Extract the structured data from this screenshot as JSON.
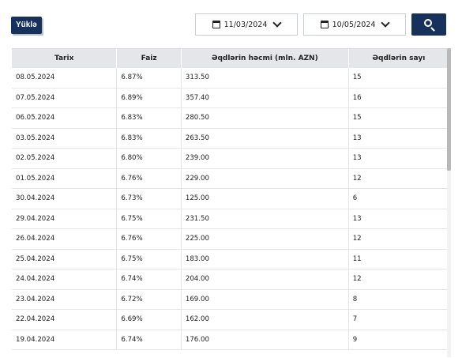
{
  "toolbar": {
    "load_label": "Yüklə",
    "date_from": "11/03/2024",
    "date_to": "10/05/2024"
  },
  "table": {
    "headers": [
      "Tarix",
      "Faiz",
      "Əqdlərin həcmi (mln. AZN)",
      "Əqdlərin sayı"
    ],
    "rows": [
      [
        "08.05.2024",
        "6.87%",
        "313.50",
        "15"
      ],
      [
        "07.05.2024",
        "6.89%",
        "357.40",
        "16"
      ],
      [
        "06.05.2024",
        "6.83%",
        "280.50",
        "15"
      ],
      [
        "03.05.2024",
        "6.83%",
        "263.50",
        "13"
      ],
      [
        "02.05.2024",
        "6.80%",
        "239.00",
        "13"
      ],
      [
        "01.05.2024",
        "6.76%",
        "229.00",
        "12"
      ],
      [
        "30.04.2024",
        "6.73%",
        "125.00",
        "6"
      ],
      [
        "29.04.2024",
        "6.75%",
        "231.50",
        "13"
      ],
      [
        "26.04.2024",
        "6.76%",
        "225.00",
        "12"
      ],
      [
        "25.04.2024",
        "6.75%",
        "183.00",
        "11"
      ],
      [
        "24.04.2024",
        "6.74%",
        "204.00",
        "12"
      ],
      [
        "23.04.2024",
        "6.72%",
        "169.00",
        "8"
      ],
      [
        "22.04.2024",
        "6.69%",
        "162.00",
        "7"
      ],
      [
        "19.04.2024",
        "6.74%",
        "176.00",
        "9"
      ]
    ]
  },
  "icons": {
    "calendar": "calendar-icon",
    "chevron": "chevron-down-icon",
    "search": "search-icon"
  },
  "colors": {
    "accent": "#16325c",
    "header_bg": "#e4e6ea"
  }
}
